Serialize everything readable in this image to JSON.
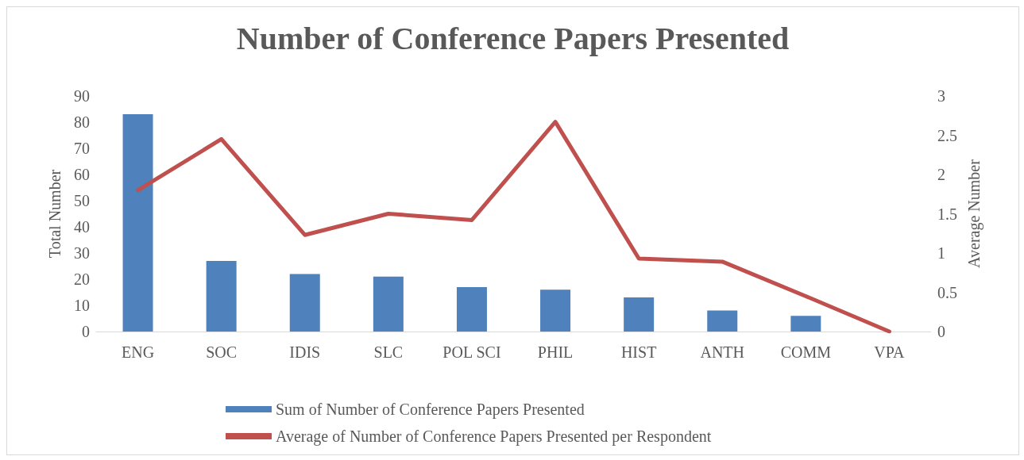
{
  "chart_data": {
    "type": "bar",
    "title": "Number of Conference Papers Presented",
    "categories": [
      "ENG",
      "SOC",
      "IDIS",
      "SLC",
      "POL SCI",
      "PHIL",
      "HIST",
      "ANTH",
      "COMM",
      "VPA"
    ],
    "series": [
      {
        "name": "Sum of Number of Conference Papers Presented",
        "color": "#4f81bd",
        "values": [
          83,
          27,
          22,
          21,
          17,
          16,
          13,
          8,
          6,
          0
        ]
      },
      {
        "name": "Average of Number of Conference Papers Presented per Respondent",
        "type": "line",
        "axis": "y2",
        "color": "#c0504d",
        "values": [
          1.8,
          2.45,
          1.23,
          1.5,
          1.42,
          2.67,
          0.93,
          0.89,
          0.45,
          0
        ]
      }
    ],
    "ylabel": "Total Number",
    "y2label": "Average Number",
    "ylim": [
      0,
      90
    ],
    "yticks": [
      0,
      10,
      20,
      30,
      40,
      50,
      60,
      70,
      80,
      90
    ],
    "y2lim": [
      0,
      3
    ],
    "y2ticks": [
      0,
      0.5,
      1,
      1.5,
      2,
      2.5,
      3
    ],
    "grid": false,
    "legend": "bottom",
    "marker": "none"
  }
}
